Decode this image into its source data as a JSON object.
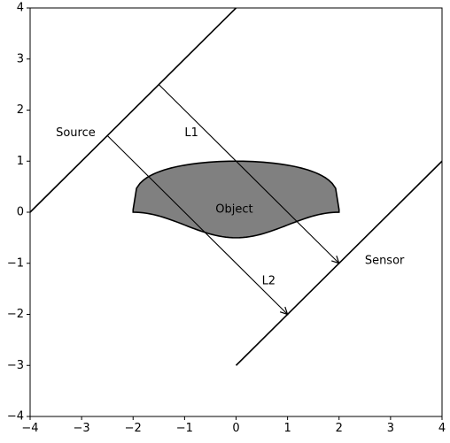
{
  "chart_data": {
    "type": "diagram",
    "xlim": [
      -4,
      4
    ],
    "ylim": [
      -4,
      4
    ],
    "grid": false,
    "xticks": [
      -4,
      -3,
      -2,
      -1,
      0,
      1,
      2,
      3,
      4
    ],
    "yticks": [
      -4,
      -3,
      -2,
      -1,
      0,
      1,
      2,
      3,
      4
    ],
    "source_line": {
      "x": [
        -4,
        0
      ],
      "y": [
        0,
        4
      ]
    },
    "sensor_line": {
      "x": [
        0,
        4
      ],
      "y": [
        -3,
        1
      ]
    },
    "object": {
      "color": "#808080",
      "top_arc": {
        "x_range": [
          -2,
          2
        ],
        "y_at_center": 1.0,
        "y_at_edges": 0.05
      },
      "bottom_arc": {
        "x_range": [
          -2,
          2
        ],
        "y_at_center": -0.5,
        "y_at_edges": 0.0
      }
    },
    "rays": [
      {
        "name": "L1",
        "start": [
          -1.5,
          2.5
        ],
        "end": [
          2.0,
          -1.0
        ]
      },
      {
        "name": "L2",
        "start": [
          -2.5,
          1.5
        ],
        "end": [
          1.0,
          -2.0
        ]
      }
    ],
    "annotations": [
      {
        "text": "Source",
        "x": -3.5,
        "y": 1.55
      },
      {
        "text": "Sensor",
        "x": 2.5,
        "y": -0.95
      },
      {
        "text": "Object",
        "x": -0.4,
        "y": 0.05
      },
      {
        "text": "L1",
        "x": -1.0,
        "y": 1.55
      },
      {
        "text": "L2",
        "x": 0.5,
        "y": -1.35
      }
    ]
  }
}
